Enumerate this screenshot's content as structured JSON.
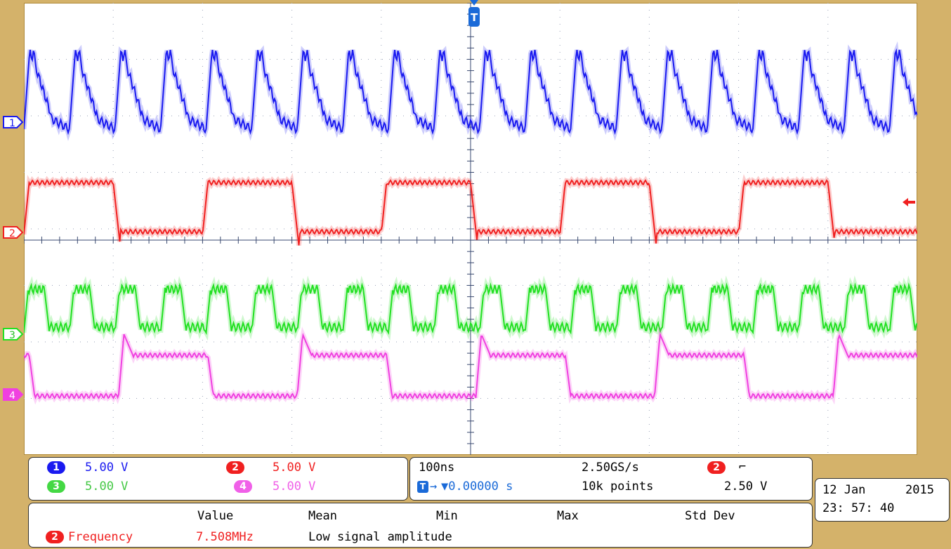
{
  "channels": [
    {
      "num": "1",
      "color": "#1a1af0",
      "scale": "5.00 V",
      "period_divs": 0.51,
      "label_color": "#1a1af0"
    },
    {
      "num": "2",
      "color": "#f02020",
      "scale": "5.00 V",
      "period_divs": 2.0,
      "label_color": "#f02020"
    },
    {
      "num": "3",
      "color": "#22e022",
      "scale": "5.00 V",
      "period_divs": 0.51,
      "label_color": "#22c022"
    },
    {
      "num": "4",
      "color": "#f040e0",
      "scale": "5.00 V",
      "period_divs": 2.0,
      "label_color": "#f040e0"
    }
  ],
  "timebase": {
    "horizontal": "100ns",
    "sample_rate": "2.50GS/s",
    "delay": "▼0.00000 s",
    "record": "10k points"
  },
  "trigger": {
    "source": "2",
    "slope": "⌐",
    "level": "2.50 V",
    "marker": "T"
  },
  "datetime": {
    "date": "12 Jan",
    "year": "2015",
    "time": "23: 57: 40"
  },
  "measurements": {
    "headers": [
      "Value",
      "Mean",
      "Min",
      "Max",
      "Std Dev"
    ],
    "row": {
      "source": "2",
      "name": "Frequency",
      "value": "7.508MHz",
      "status": "Low signal amplitude"
    }
  },
  "colors": {
    "grid": "#9aa3b8",
    "frame": "#d4b26a"
  }
}
